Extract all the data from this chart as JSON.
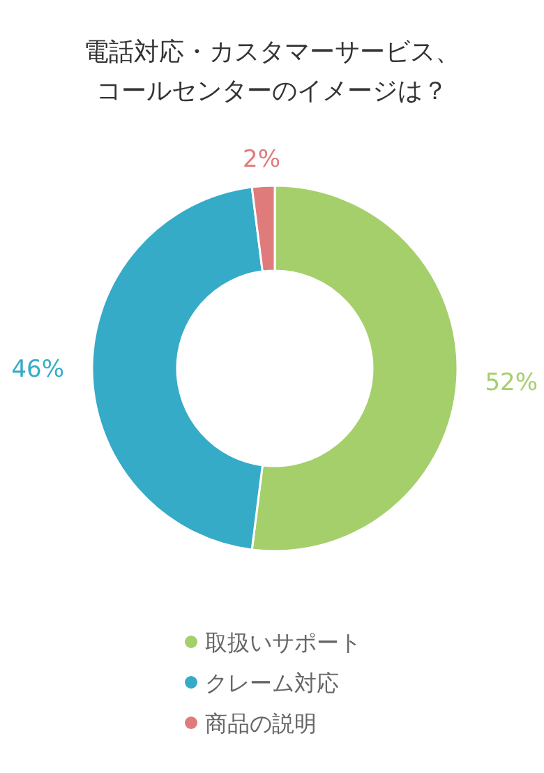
{
  "chart_data": {
    "type": "donut",
    "title": "電話対応・カスタマーサービス、コールセンターのイメージは？",
    "categories": [
      "取扱いサポート",
      "クレーム対応",
      "商品の説明"
    ],
    "values": [
      52,
      46,
      2
    ],
    "colors": [
      "#a5cf6b",
      "#35abc8",
      "#e07b7b"
    ],
    "value_labels": [
      "52%",
      "46%",
      "2%"
    ],
    "legend": "bottom"
  }
}
